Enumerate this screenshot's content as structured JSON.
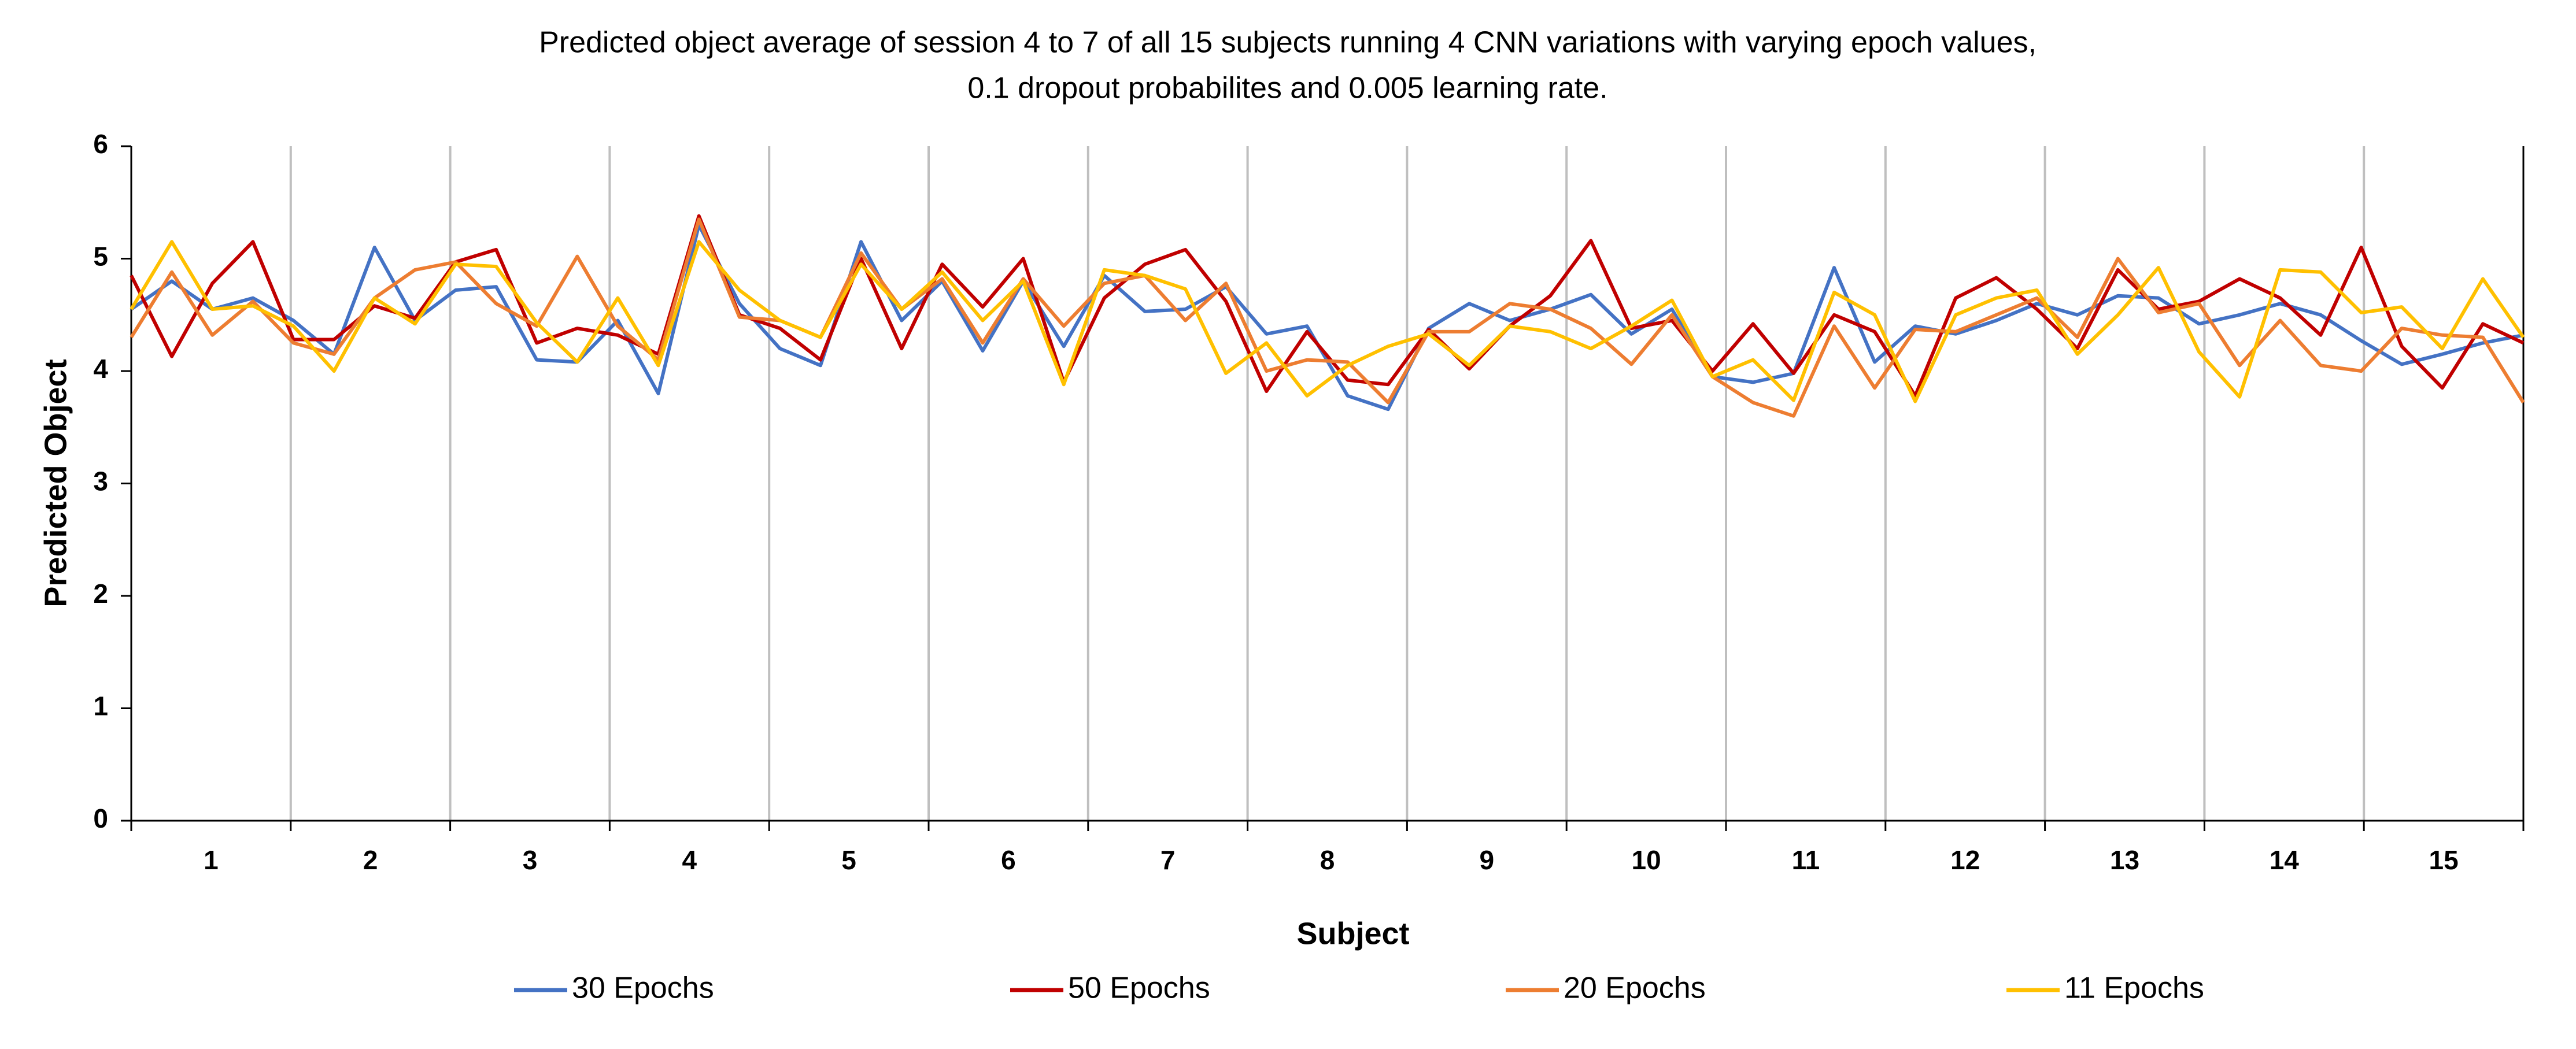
{
  "chart_data": {
    "type": "line",
    "title": [
      "Predicted object average of session 4 to 7 of all 15 subjects running 4 CNN variations with varying epoch values,",
      "0.1 dropout probabilites and 0.005 learning rate."
    ],
    "x_label": "Subject",
    "y_label": "Predicted Object",
    "groups": [
      "1",
      "2",
      "3",
      "4",
      "5",
      "6",
      "7",
      "8",
      "9",
      "10",
      "11",
      "12",
      "13",
      "14",
      "15"
    ],
    "ylim": [
      0,
      6
    ],
    "yticks": [
      0,
      1,
      2,
      3,
      4,
      5,
      6
    ],
    "grid": false,
    "legend": "bottom",
    "series": [
      {
        "name": "30 Epochs",
        "color": "#4472c4",
        "values": [
          4.55,
          4.8,
          4.55,
          4.65,
          4.45,
          4.15,
          5.1,
          4.45,
          4.72,
          4.75,
          4.1,
          4.08,
          4.45,
          3.8,
          5.3,
          4.6,
          4.2,
          4.05,
          5.15,
          4.45,
          4.8,
          4.18,
          4.8,
          4.22,
          4.85,
          4.53,
          4.55,
          4.75,
          4.33,
          4.4,
          3.78,
          3.66,
          4.38,
          4.6,
          4.45,
          4.55,
          4.68,
          4.33,
          4.55,
          3.95,
          3.9,
          3.98,
          4.92,
          4.08,
          4.4,
          4.33,
          4.45,
          4.6,
          4.5,
          4.67,
          4.65,
          4.42,
          4.5,
          4.6,
          4.5,
          4.27,
          4.06,
          4.15,
          4.25,
          4.32
        ]
      },
      {
        "name": "50 Epochs",
        "color": "#c00000",
        "values": [
          4.85,
          4.13,
          4.78,
          5.15,
          4.28,
          4.28,
          4.58,
          4.47,
          4.97,
          5.08,
          4.25,
          4.38,
          4.32,
          4.15,
          5.38,
          4.5,
          4.38,
          4.1,
          5.0,
          4.2,
          4.95,
          4.57,
          5.0,
          3.9,
          4.65,
          4.95,
          5.08,
          4.62,
          3.82,
          4.35,
          3.92,
          3.88,
          4.37,
          4.02,
          4.4,
          4.67,
          5.16,
          4.38,
          4.45,
          4.0,
          4.42,
          3.98,
          4.5,
          4.35,
          3.78,
          4.65,
          4.83,
          4.55,
          4.2,
          4.9,
          4.55,
          4.62,
          4.82,
          4.65,
          4.32,
          5.1,
          4.22,
          3.85,
          4.42,
          4.25
        ]
      },
      {
        "name": "20 Epochs",
        "color": "#ed7d31",
        "values": [
          4.3,
          4.88,
          4.32,
          4.62,
          4.25,
          4.15,
          4.65,
          4.9,
          4.97,
          4.6,
          4.4,
          5.02,
          4.4,
          4.1,
          5.35,
          4.48,
          4.45,
          4.3,
          5.05,
          4.55,
          4.82,
          4.25,
          4.82,
          4.4,
          4.78,
          4.85,
          4.45,
          4.78,
          4.0,
          4.1,
          4.08,
          3.72,
          4.35,
          4.35,
          4.6,
          4.55,
          4.38,
          4.06,
          4.5,
          3.95,
          3.72,
          3.6,
          4.4,
          3.85,
          4.37,
          4.35,
          4.5,
          4.65,
          4.3,
          5.0,
          4.52,
          4.6,
          4.05,
          4.45,
          4.05,
          4.0,
          4.38,
          4.32,
          4.3,
          3.72
        ]
      },
      {
        "name": "11 Epochs",
        "color": "#ffc000",
        "values": [
          4.55,
          5.15,
          4.55,
          4.58,
          4.4,
          4.0,
          4.65,
          4.42,
          4.95,
          4.93,
          4.43,
          4.08,
          4.65,
          4.05,
          5.15,
          4.72,
          4.45,
          4.3,
          4.95,
          4.55,
          4.88,
          4.45,
          4.8,
          3.88,
          4.9,
          4.85,
          4.73,
          3.98,
          4.25,
          3.78,
          4.05,
          4.22,
          4.33,
          4.05,
          4.4,
          4.35,
          4.2,
          4.4,
          4.63,
          3.95,
          4.1,
          3.74,
          4.7,
          4.5,
          3.73,
          4.5,
          4.65,
          4.72,
          4.15,
          4.5,
          4.92,
          4.17,
          3.77,
          4.9,
          4.88,
          4.52,
          4.57,
          4.2,
          4.82,
          4.3
        ]
      }
    ]
  }
}
